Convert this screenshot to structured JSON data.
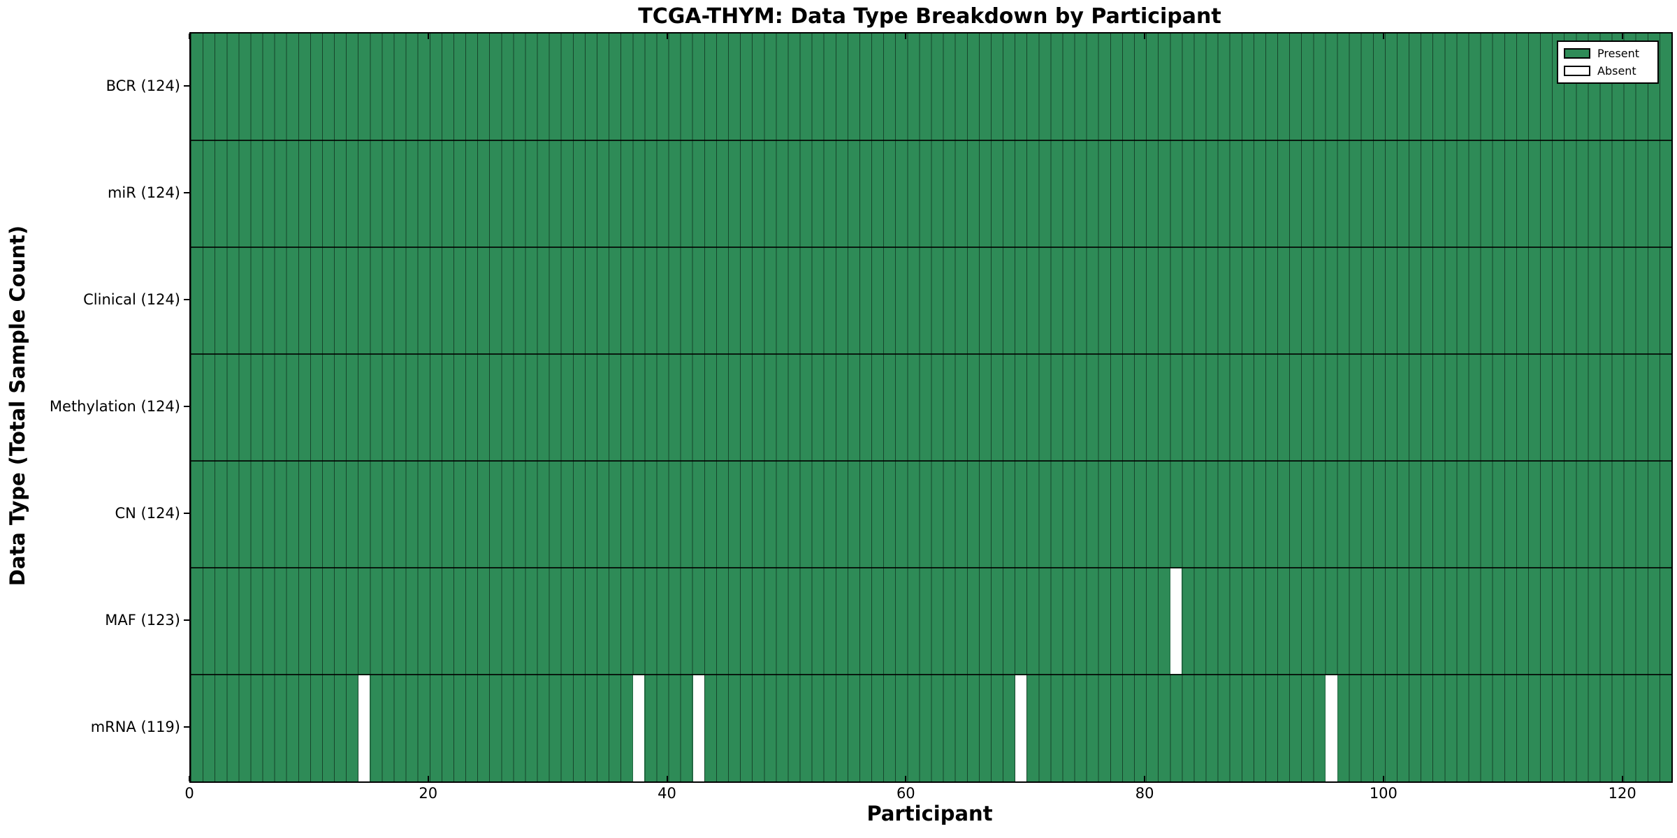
{
  "chart_data": {
    "type": "heatmap",
    "title": "TCGA-THYM: Data Type Breakdown by Participant",
    "xlabel": "Participant",
    "ylabel": "Data Type (Total Sample Count)",
    "x_ticks": [
      "0",
      "20",
      "40",
      "60",
      "80",
      "100",
      "120"
    ],
    "x_tick_values": [
      0,
      20,
      40,
      60,
      80,
      100,
      120
    ],
    "x_range": [
      0,
      124
    ],
    "n_participants": 124,
    "grid": false,
    "cell_states": [
      "Present",
      "Absent"
    ],
    "rows": [
      {
        "label": "BCR (124)",
        "name": "BCR",
        "present_count": 124,
        "absent_participants": []
      },
      {
        "label": "miR (124)",
        "name": "miR",
        "present_count": 124,
        "absent_participants": []
      },
      {
        "label": "Clinical (124)",
        "name": "Clinical",
        "present_count": 124,
        "absent_participants": []
      },
      {
        "label": "Methylation (124)",
        "name": "Methylation",
        "present_count": 124,
        "absent_participants": []
      },
      {
        "label": "CN (124)",
        "name": "CN",
        "present_count": 124,
        "absent_participants": []
      },
      {
        "label": "MAF (123)",
        "name": "MAF",
        "present_count": 123,
        "absent_participants": [
          82
        ]
      },
      {
        "label": "mRNA (119)",
        "name": "mRNA",
        "present_count": 119,
        "absent_participants": [
          14,
          37,
          42,
          69,
          95
        ]
      }
    ],
    "legend": {
      "position": "upper right",
      "entries": [
        {
          "label": "Present",
          "color": "#2e8b57"
        },
        {
          "label": "Absent",
          "color": "#ffffff"
        }
      ]
    },
    "colors": {
      "present": "#2e8b57",
      "absent": "#ffffff",
      "cell_separator": "rgba(0,0,0,0.5)",
      "axis": "#000000",
      "background": "#ffffff"
    }
  }
}
